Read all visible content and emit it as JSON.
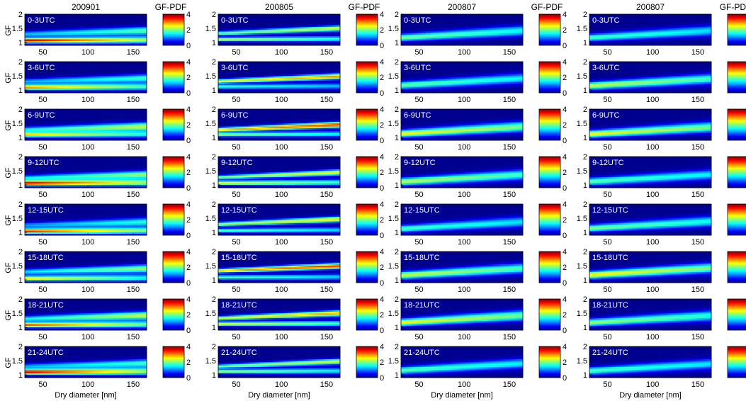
{
  "colors": {
    "colormap": [
      "#00008f",
      "#0000ff",
      "#0080ff",
      "#00ffff",
      "#80ff80",
      "#ffff00",
      "#ff8000",
      "#ff0000",
      "#800000"
    ],
    "background": "#00008f"
  },
  "chart_data": {
    "type": "heatmap",
    "columns": [
      {
        "title": "200901",
        "variant": "a"
      },
      {
        "title": "200805",
        "variant": "b"
      },
      {
        "title": "200807",
        "variant": "c"
      },
      {
        "title": "200807",
        "variant": "c"
      }
    ],
    "time_windows": [
      "0-3UTC",
      "3-6UTC",
      "6-9UTC",
      "9-12UTC",
      "12-15UTC",
      "15-18UTC",
      "18-21UTC",
      "21-24UTC"
    ],
    "xlabel": "Dry diameter [nm]",
    "ylabel": "GF",
    "xlim": [
      30,
      165
    ],
    "ylim": [
      0.9,
      2
    ],
    "xticks": [
      50,
      100,
      150
    ],
    "yticks": [
      1,
      1.5,
      2
    ],
    "colorbar": {
      "label": "GF-PDF",
      "range": [
        0,
        4
      ],
      "ticks": [
        0,
        2,
        4
      ]
    },
    "modes": {
      "a": [
        {
          "x": [
            30,
            165
          ],
          "gf": [
            1.08,
            1.1
          ],
          "w": 0.06,
          "amp": [
            3.8,
            2.2
          ]
        },
        {
          "x": [
            30,
            165
          ],
          "gf": [
            1.28,
            1.4
          ],
          "w": 0.07,
          "amp": [
            1.6,
            2.4
          ]
        }
      ],
      "b": [
        {
          "x": [
            30,
            165
          ],
          "gf": [
            1.1,
            1.12
          ],
          "w": 0.05,
          "amp": [
            2.6,
            1.8
          ]
        },
        {
          "x": [
            30,
            165
          ],
          "gf": [
            1.3,
            1.48
          ],
          "w": 0.05,
          "amp": [
            2.8,
            3.4
          ]
        }
      ],
      "c": [
        {
          "x": [
            30,
            165
          ],
          "gf": [
            1.15,
            1.4
          ],
          "w": 0.09,
          "amp": [
            2.6,
            2.0
          ]
        }
      ]
    }
  }
}
